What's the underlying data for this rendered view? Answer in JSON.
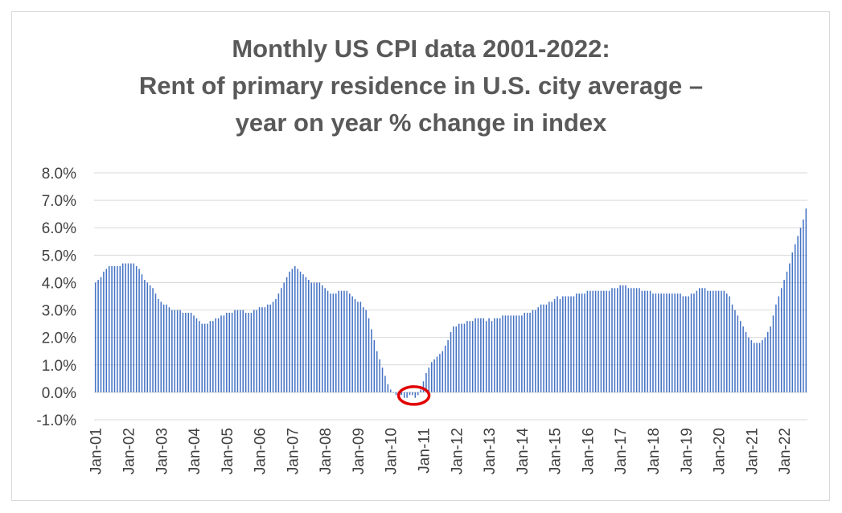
{
  "chart_data": {
    "type": "bar",
    "title": [
      "Monthly US CPI data 2001-2022:",
      "Rent of primary residence in U.S. city average –",
      "year on year % change in index"
    ],
    "xlabel": "",
    "ylabel": "",
    "ylim": [
      -1.0,
      8.0
    ],
    "yticks": [
      "8.0%",
      "7.0%",
      "6.0%",
      "5.0%",
      "4.0%",
      "3.0%",
      "2.0%",
      "1.0%",
      "0.0%",
      "-1.0%"
    ],
    "ytick_values": [
      8,
      7,
      6,
      5,
      4,
      3,
      2,
      1,
      0,
      -1
    ],
    "xticks": [
      "Jan-01",
      "Jan-02",
      "Jan-03",
      "Jan-04",
      "Jan-05",
      "Jan-06",
      "Jan-07",
      "Jan-08",
      "Jan-09",
      "Jan-10",
      "Jan-11",
      "Jan-12",
      "Jan-13",
      "Jan-14",
      "Jan-15",
      "Jan-16",
      "Jan-17",
      "Jan-18",
      "Jan-19",
      "Jan-20",
      "Jan-21",
      "Jan-22"
    ],
    "grid": true,
    "bar_color": "#4472c4",
    "highlight_color": "#e00000",
    "highlight_range_months": [
      113,
      120
    ],
    "series": [
      {
        "name": "Rent of primary residence YoY % change",
        "values": [
          4.0,
          4.1,
          4.2,
          4.4,
          4.5,
          4.6,
          4.6,
          4.6,
          4.6,
          4.6,
          4.7,
          4.7,
          4.7,
          4.7,
          4.7,
          4.6,
          4.5,
          4.3,
          4.1,
          4.0,
          3.9,
          3.8,
          3.6,
          3.4,
          3.3,
          3.2,
          3.2,
          3.1,
          3.0,
          3.0,
          3.0,
          3.0,
          2.9,
          2.9,
          2.9,
          2.9,
          2.8,
          2.7,
          2.6,
          2.5,
          2.5,
          2.5,
          2.6,
          2.6,
          2.7,
          2.7,
          2.8,
          2.8,
          2.9,
          2.9,
          2.9,
          3.0,
          3.0,
          3.0,
          3.0,
          2.9,
          2.9,
          2.9,
          3.0,
          3.0,
          3.1,
          3.1,
          3.1,
          3.2,
          3.2,
          3.3,
          3.4,
          3.6,
          3.8,
          4.0,
          4.2,
          4.4,
          4.5,
          4.6,
          4.5,
          4.4,
          4.3,
          4.2,
          4.1,
          4.0,
          4.0,
          4.0,
          4.0,
          3.9,
          3.8,
          3.7,
          3.6,
          3.6,
          3.6,
          3.7,
          3.7,
          3.7,
          3.7,
          3.6,
          3.5,
          3.4,
          3.3,
          3.3,
          3.1,
          3.0,
          2.7,
          2.3,
          1.9,
          1.5,
          1.2,
          0.9,
          0.6,
          0.3,
          0.1,
          0.0,
          -0.1,
          -0.1,
          -0.1,
          -0.2,
          -0.2,
          -0.1,
          -0.1,
          -0.2,
          -0.1,
          0.1,
          0.4,
          0.7,
          0.9,
          1.1,
          1.2,
          1.3,
          1.4,
          1.5,
          1.7,
          1.9,
          2.2,
          2.4,
          2.4,
          2.5,
          2.5,
          2.5,
          2.6,
          2.6,
          2.6,
          2.7,
          2.7,
          2.7,
          2.7,
          2.6,
          2.7,
          2.6,
          2.7,
          2.7,
          2.7,
          2.8,
          2.8,
          2.8,
          2.8,
          2.8,
          2.8,
          2.8,
          2.8,
          2.9,
          2.9,
          2.9,
          3.0,
          3.0,
          3.1,
          3.2,
          3.2,
          3.2,
          3.3,
          3.3,
          3.4,
          3.5,
          3.4,
          3.5,
          3.5,
          3.5,
          3.5,
          3.5,
          3.6,
          3.6,
          3.6,
          3.6,
          3.7,
          3.7,
          3.7,
          3.7,
          3.7,
          3.7,
          3.7,
          3.7,
          3.7,
          3.8,
          3.8,
          3.8,
          3.9,
          3.9,
          3.9,
          3.8,
          3.8,
          3.8,
          3.8,
          3.8,
          3.7,
          3.7,
          3.7,
          3.7,
          3.6,
          3.6,
          3.6,
          3.6,
          3.6,
          3.6,
          3.6,
          3.6,
          3.6,
          3.6,
          3.6,
          3.5,
          3.5,
          3.5,
          3.6,
          3.6,
          3.7,
          3.8,
          3.8,
          3.8,
          3.7,
          3.7,
          3.7,
          3.7,
          3.7,
          3.7,
          3.7,
          3.6,
          3.5,
          3.2,
          3.0,
          2.8,
          2.6,
          2.4,
          2.2,
          2.0,
          1.9,
          1.8,
          1.8,
          1.8,
          1.9,
          2.0,
          2.2,
          2.4,
          2.8,
          3.2,
          3.5,
          3.8,
          4.1,
          4.4,
          4.7,
          5.1,
          5.4,
          5.7,
          6.0,
          6.3,
          6.7
        ]
      }
    ]
  }
}
